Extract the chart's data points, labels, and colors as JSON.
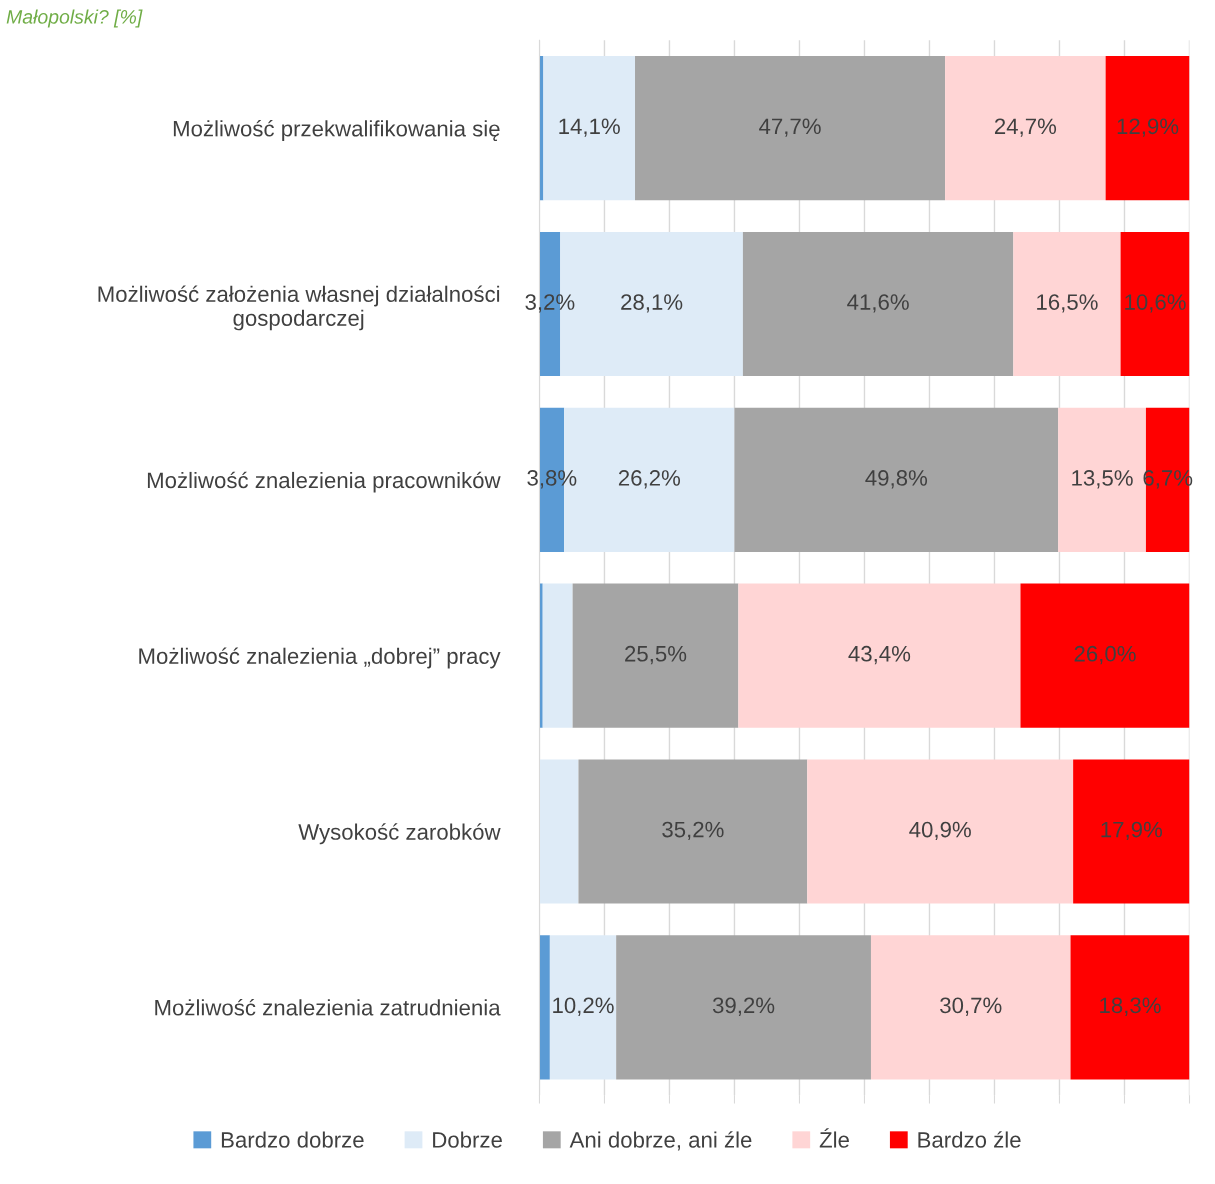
{
  "chart_data": {
    "type": "bar",
    "orientation": "horizontal",
    "stacked": true,
    "title": "Małopolski? [%]",
    "categories": [
      "Możliwość przekwalifikowania się",
      "Możliwość założenia własnej działalności\ngospodarczej",
      "Możliwość znalezienia pracowników",
      "Możliwość znalezienia „dobrej” pracy",
      "Wysokość zarobków",
      "Możliwość znalezienia zatrudnienia"
    ],
    "series": [
      {
        "name": "Bardzo dobrze",
        "color": "#5b9bd5",
        "values": [
          0.6,
          3.2,
          3.8,
          0.5,
          0.0,
          1.6
        ],
        "value_labels": [
          null,
          "3,2%",
          "3,8%",
          null,
          null,
          null
        ]
      },
      {
        "name": "Dobrze",
        "color": "#deebf7",
        "values": [
          14.1,
          28.1,
          26.2,
          4.6,
          6.0,
          10.2
        ],
        "value_labels": [
          "14,1%",
          "28,1%",
          "26,2%",
          null,
          null,
          "10,2%"
        ]
      },
      {
        "name": "Ani dobrze, ani źle",
        "color": "#a5a5a5",
        "values": [
          47.7,
          41.6,
          49.8,
          25.5,
          35.2,
          39.2
        ],
        "value_labels": [
          "47,7%",
          "41,6%",
          "49,8%",
          "25,5%",
          "35,2%",
          "39,2%"
        ]
      },
      {
        "name": "Źle",
        "color": "#ffd5d5",
        "values": [
          24.7,
          16.5,
          13.5,
          43.4,
          40.9,
          30.7
        ],
        "value_labels": [
          "24,7%",
          "16,5%",
          "13,5%",
          "43,4%",
          "40,9%",
          "30,7%"
        ]
      },
      {
        "name": "Bardzo źle",
        "color": "#ff0000",
        "values": [
          12.9,
          10.6,
          6.7,
          26.0,
          17.9,
          18.3
        ],
        "value_labels": [
          "12,9%",
          "10,6%",
          "6,7%",
          "26,0%",
          "17,9%",
          "18,3%"
        ]
      }
    ],
    "xlim": [
      0,
      100
    ],
    "xticks": [
      {
        "value": 0,
        "label": null
      },
      {
        "value": 10,
        "label": null
      },
      {
        "value": 20,
        "label": null
      },
      {
        "value": 30,
        "label": null
      },
      {
        "value": 40,
        "label": null
      },
      {
        "value": 50,
        "label": null
      },
      {
        "value": 60,
        "label": null
      },
      {
        "value": 70,
        "label": null
      },
      {
        "value": 80,
        "label": null
      },
      {
        "value": 90,
        "label": null
      },
      {
        "value": 100,
        "label": null
      }
    ],
    "grid": "x",
    "legend": "bottom"
  }
}
